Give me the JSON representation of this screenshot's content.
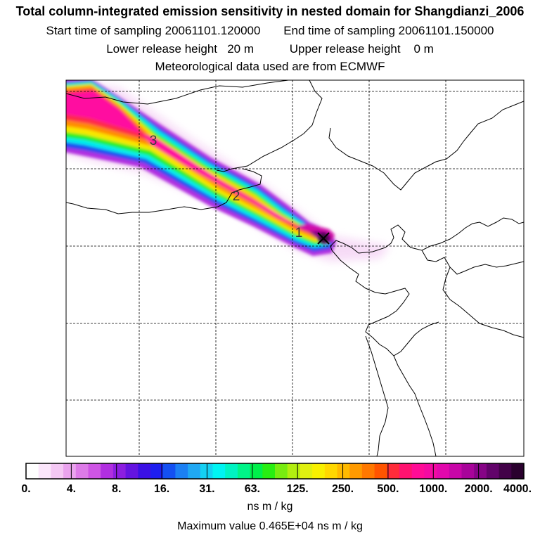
{
  "titles": {
    "line1": "Total column-integrated emission sensitivity in nested domain for Shangdianzi_2006",
    "start_label": "Start time of sampling",
    "start_value": "20061101.120000",
    "end_label": "End time of sampling",
    "end_value": "20061101.150000",
    "lower_label": "Lower release height",
    "lower_value": "20 m",
    "upper_label": "Upper release height",
    "upper_value": "0 m",
    "met_line": "Meteorological data used are from ECMWF"
  },
  "map": {
    "plume_markers": [
      "1",
      "2",
      "3"
    ],
    "release_marker": "release-point-x"
  },
  "colorbar": {
    "labels": [
      "0.",
      "4.",
      "8.",
      "16.",
      "31.",
      "63.",
      "125.",
      "250.",
      "500.",
      "1000.",
      "2000.",
      "4000."
    ],
    "colors": [
      "#ffffff",
      "#fbe6fb",
      "#f4c8f4",
      "#eaa3ee",
      "#dd7be8",
      "#ce55e4",
      "#b12fe0",
      "#8c1ee0",
      "#6414e0",
      "#3b10e4",
      "#1e1ef0",
      "#1450f2",
      "#1c80f4",
      "#20a8f4",
      "#14d0f2",
      "#00f4f2",
      "#00f4c2",
      "#00f488",
      "#00f04a",
      "#28ee12",
      "#78ec10",
      "#b2ee10",
      "#e0f010",
      "#f8f000",
      "#ffd800",
      "#ffba00",
      "#ff9a00",
      "#ff7800",
      "#ff5400",
      "#ff2c3a",
      "#ff1270",
      "#ff0c96",
      "#f40aa2",
      "#e208ac",
      "#c806a8",
      "#a8049a",
      "#860486",
      "#62036a",
      "#420248",
      "#2a012e"
    ],
    "units": "ns m / kg"
  },
  "max_value_text": "Maximum value  0.465E+04 ns m / kg",
  "colors": {
    "frame": "#000000",
    "grid": "#000000",
    "peak": "#3a0a3c"
  }
}
